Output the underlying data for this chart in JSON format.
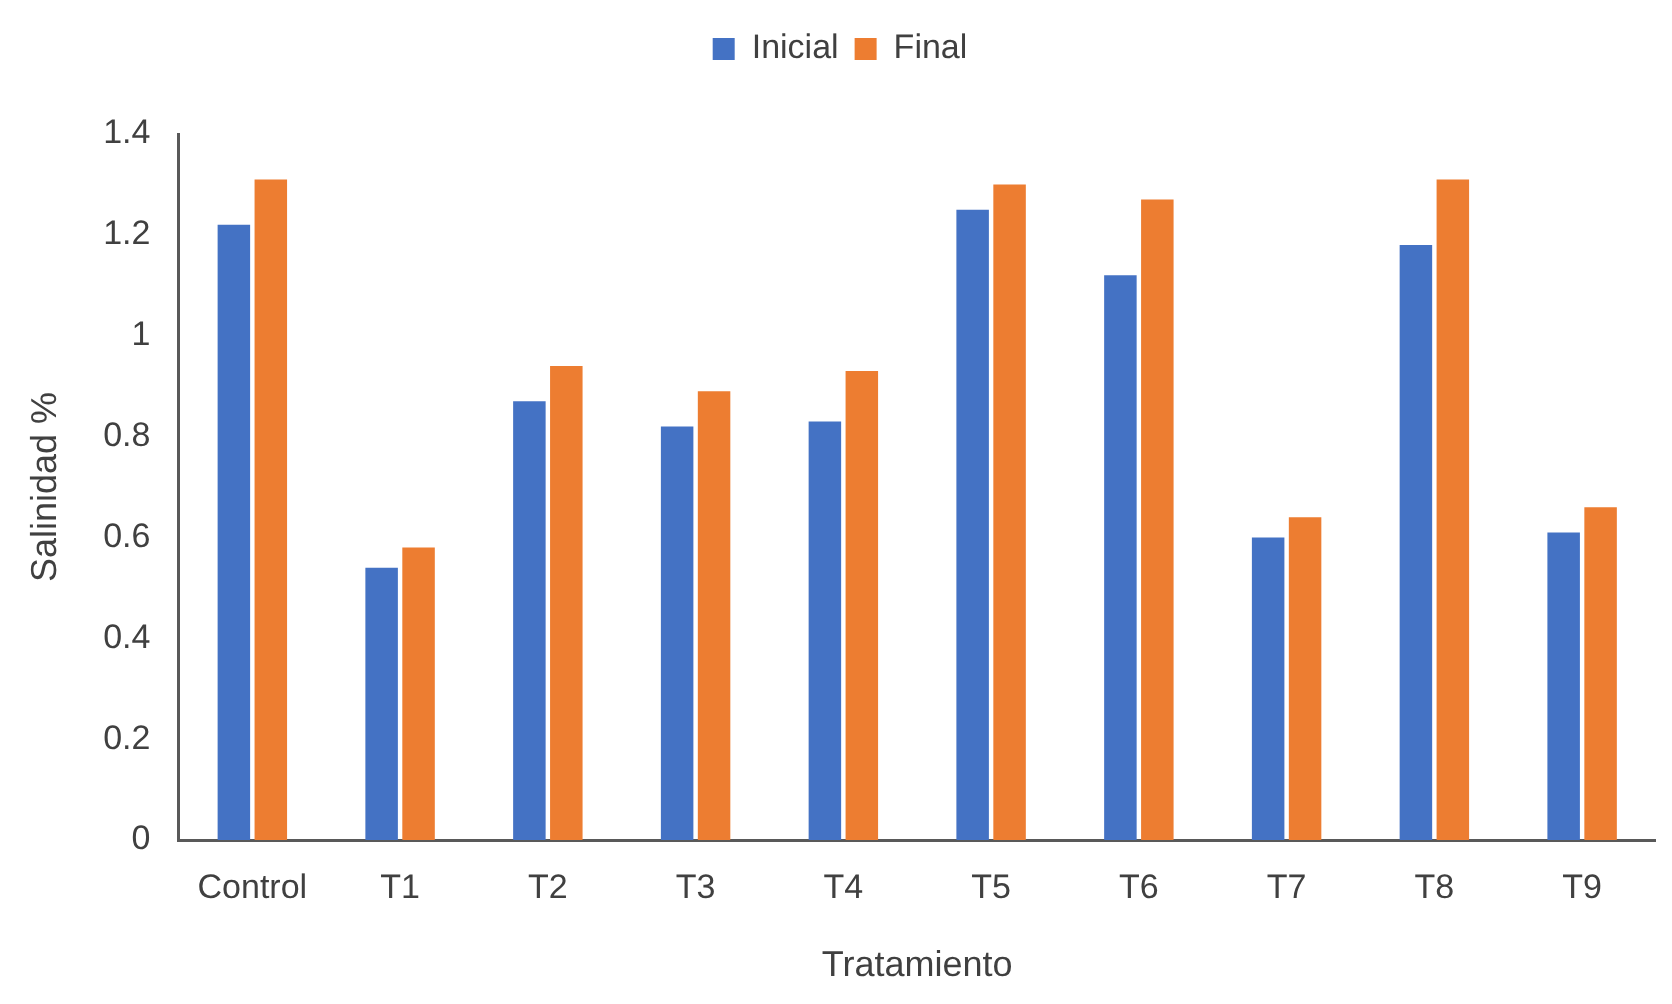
{
  "chart_data": {
    "type": "bar",
    "xlabel": "Tratamiento",
    "ylabel": "Salinidad %",
    "categories": [
      "Control",
      "T1",
      "T2",
      "T3",
      "T4",
      "T5",
      "T6",
      "T7",
      "T8",
      "T9"
    ],
    "series": [
      {
        "name": "Inicial",
        "color": "#4472c4",
        "values": [
          1.22,
          0.54,
          0.87,
          0.82,
          0.83,
          1.25,
          1.12,
          0.6,
          1.18,
          0.61
        ]
      },
      {
        "name": "Final",
        "color": "#ed7d31",
        "values": [
          1.31,
          0.58,
          0.94,
          0.89,
          0.93,
          1.3,
          1.27,
          0.64,
          1.31,
          0.66
        ]
      }
    ],
    "ylim": [
      0,
      1.4
    ],
    "yticks": [
      0,
      0.2,
      0.4,
      0.6,
      0.8,
      1,
      1.2,
      1.4
    ],
    "grid": false,
    "legend": "top"
  }
}
